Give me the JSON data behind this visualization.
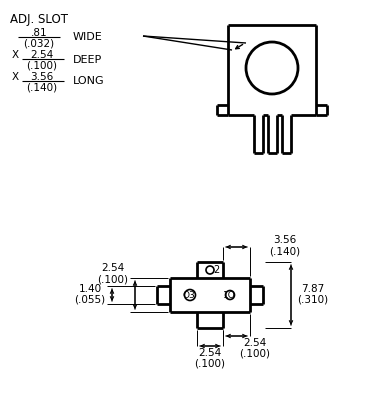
{
  "bg_color": "#ffffff",
  "line_color": "#000000",
  "text_color": "#000000",
  "title": "ADJ. SLOT",
  "wide": "WIDE",
  "deep": "DEEP",
  "long": "LONG",
  "dim1_top": ".81",
  "dim1_bot": "(.032)",
  "dim2_top": "2.54",
  "dim2_bot": "(.100)",
  "dim3_top": "3.56",
  "dim3_bot": "(.140)",
  "bd_tl_top": "2.54",
  "bd_tl_bot": "(.100)",
  "bd_bl_top": "2.54",
  "bd_bl_bot": "(.100)",
  "bd_tr_top": "3.56",
  "bd_tr_bot": "(.140)",
  "bd_br_top": "2.54",
  "bd_br_bot": "(.100)",
  "bd_r_top": "7.87",
  "bd_r_bot": "(.310)",
  "bd_l_top": "1.40",
  "bd_l_bot": "(.055)",
  "fs": 7.5
}
